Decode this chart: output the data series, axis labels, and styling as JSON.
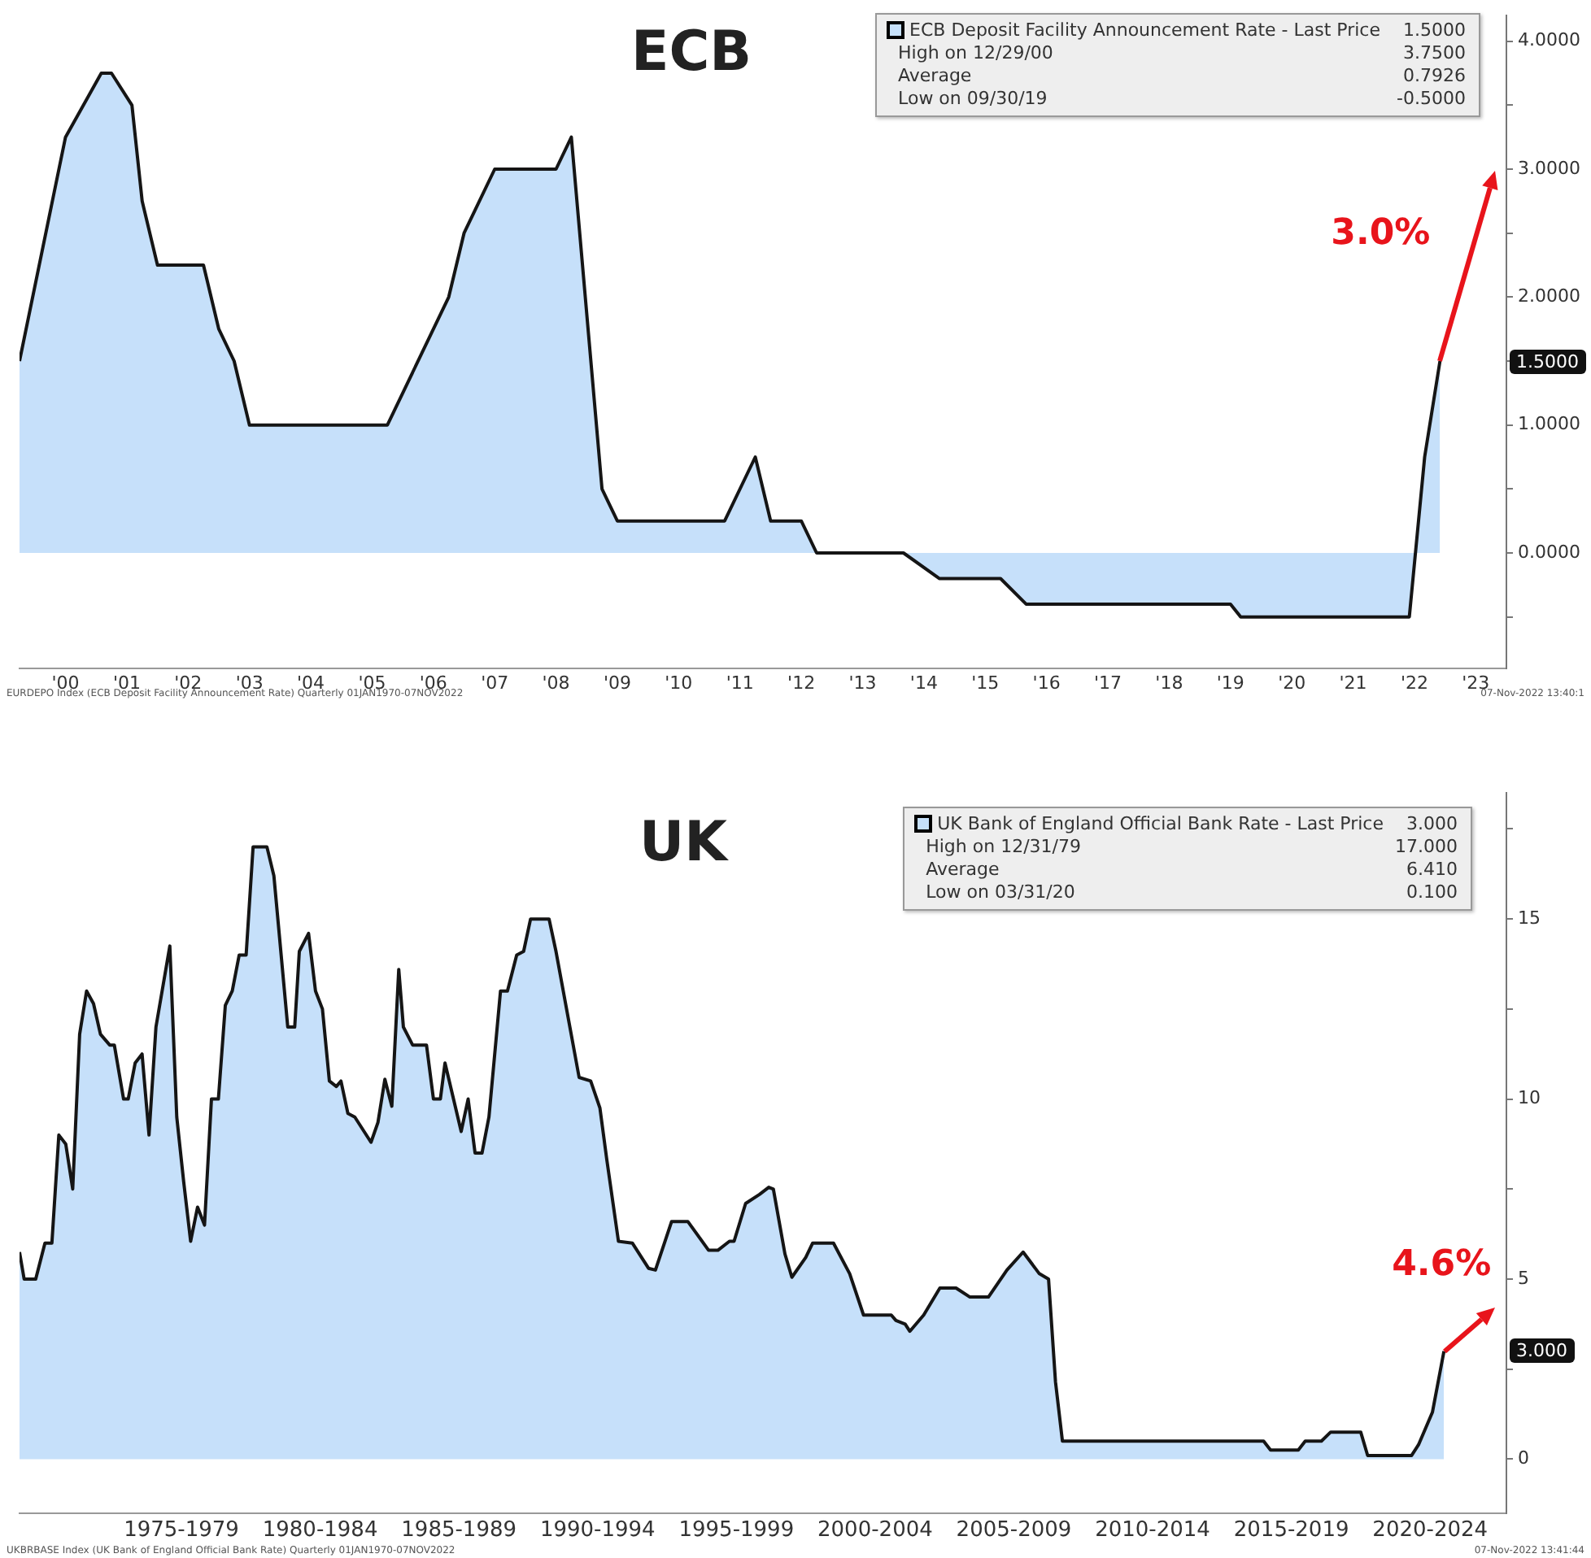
{
  "chart_data": [
    {
      "type": "area",
      "title": "ECB",
      "legend": "top right",
      "xlim": [
        "1999-10",
        "2024-01"
      ],
      "ylim": [
        -0.9,
        4.2
      ],
      "xticks": [
        {
          "value": "2000-07",
          "label": "'00"
        },
        {
          "value": "2001-07",
          "label": "'01"
        },
        {
          "value": "2002-07",
          "label": "'02"
        },
        {
          "value": "2003-07",
          "label": "'03"
        },
        {
          "value": "2004-07",
          "label": "'04"
        },
        {
          "value": "2005-07",
          "label": "'05"
        },
        {
          "value": "2006-07",
          "label": "'06"
        },
        {
          "value": "2007-07",
          "label": "'07"
        },
        {
          "value": "2008-07",
          "label": "'08"
        },
        {
          "value": "2009-07",
          "label": "'09"
        },
        {
          "value": "2010-07",
          "label": "'10"
        },
        {
          "value": "2011-07",
          "label": "'11"
        },
        {
          "value": "2012-07",
          "label": "'12"
        },
        {
          "value": "2013-07",
          "label": "'13"
        },
        {
          "value": "2014-07",
          "label": "'14"
        },
        {
          "value": "2015-07",
          "label": "'15"
        },
        {
          "value": "2016-07",
          "label": "'16"
        },
        {
          "value": "2017-07",
          "label": "'17"
        },
        {
          "value": "2018-07",
          "label": "'18"
        },
        {
          "value": "2019-07",
          "label": "'19"
        },
        {
          "value": "2020-07",
          "label": "'20"
        },
        {
          "value": "2021-07",
          "label": "'21"
        },
        {
          "value": "2022-07",
          "label": "'22"
        },
        {
          "value": "2023-07",
          "label": "'23"
        }
      ],
      "yticks": [
        {
          "value": -0.5,
          "label": null
        },
        {
          "value": 0,
          "label": "0.0000"
        },
        {
          "value": 0.5,
          "label": null
        },
        {
          "value": 1,
          "label": "1.0000"
        },
        {
          "value": 1.5,
          "label": null
        },
        {
          "value": 2,
          "label": "2.0000"
        },
        {
          "value": 2.5,
          "label": null
        },
        {
          "value": 3,
          "label": "3.0000"
        },
        {
          "value": 3.5,
          "label": null
        },
        {
          "value": 4,
          "label": "4.0000"
        }
      ],
      "series": [
        {
          "name": "ECB Deposit Facility Announcement Rate - Last Price",
          "color": "#c6e0fa",
          "x": [
            "1999-10",
            "2000-07",
            "2001-02",
            "2001-04",
            "2001-08",
            "2001-10",
            "2002-01",
            "2002-10",
            "2003-01",
            "2003-04",
            "2003-07",
            "2005-10",
            "2006-10",
            "2007-01",
            "2007-07",
            "2008-07",
            "2008-10",
            "2009-04",
            "2009-07",
            "2011-04",
            "2011-10",
            "2012-01",
            "2012-07",
            "2012-10",
            "2014-03",
            "2014-10",
            "2015-10",
            "2016-03",
            "2019-07",
            "2019-09",
            "2022-06",
            "2022-09",
            "2022-12"
          ],
          "values": [
            1.5,
            3.25,
            3.75,
            3.75,
            3.5,
            2.75,
            2.25,
            2.25,
            1.75,
            1.5,
            1.0,
            1.0,
            2.0,
            2.5,
            3.0,
            3.0,
            3.25,
            0.5,
            0.25,
            0.25,
            0.75,
            0.25,
            0.25,
            0,
            0,
            -0.2,
            -0.2,
            -0.4,
            -0.4,
            -0.5,
            -0.5,
            0.75,
            1.5
          ]
        }
      ],
      "annotations": [
        "1.5000",
        "High on 12/29/00",
        "3.7500",
        "Average",
        "0.7926",
        "Low on 09/30/19",
        "-0.5000",
        "EURDEPO Index (ECB Deposit Facility Announcement Rate) Quarterly 01JAN1970-07NOV2022",
        "07-Nov-2022 13:40:1",
        "1.5000",
        "3.0%"
      ]
    },
    {
      "type": "area",
      "title": "UK",
      "legend": "top right",
      "xlim": [
        "1971-09",
        "2025-04"
      ],
      "ylim": [
        -1.5,
        18.5
      ],
      "xticks": [
        {
          "value": "1977-07",
          "label": "1975-1979"
        },
        {
          "value": "1982-07",
          "label": "1980-1984"
        },
        {
          "value": "1987-07",
          "label": "1985-1989"
        },
        {
          "value": "1992-07",
          "label": "1990-1994"
        },
        {
          "value": "1997-07",
          "label": "1995-1999"
        },
        {
          "value": "2002-07",
          "label": "2000-2004"
        },
        {
          "value": "2007-07",
          "label": "2005-2009"
        },
        {
          "value": "2012-07",
          "label": "2010-2014"
        },
        {
          "value": "2017-07",
          "label": "2015-2019"
        },
        {
          "value": "2022-07",
          "label": "2020-2024"
        }
      ],
      "yticks": [
        0,
        {
          "value": 2.5,
          "label": null
        },
        5,
        {
          "value": 7.5,
          "label": null
        },
        10,
        {
          "value": 12.5,
          "label": null
        },
        15,
        {
          "value": 17.5,
          "label": null
        }
      ],
      "series": [
        {
          "name": "UK Bank of England Official Bank Rate - Last Price",
          "color": "#c6e0fa",
          "x": [
            "1971-09",
            "1971-11",
            "1972-04",
            "1972-08",
            "1972-11",
            "1973-02",
            "1973-05",
            "1973-08",
            "1973-11",
            "1974-02",
            "1974-05",
            "1974-08",
            "1974-12",
            "1975-02",
            "1975-06",
            "1975-08",
            "1975-11",
            "1976-02",
            "1976-05",
            "1976-08",
            "1977-02",
            "1977-05",
            "1977-08",
            "1977-11",
            "1978-02",
            "1978-05",
            "1978-08",
            "1978-11",
            "1979-02",
            "1979-05",
            "1979-08",
            "1979-11",
            "1980-02",
            "1980-08",
            "1980-11",
            "1981-05",
            "1981-08",
            "1981-10",
            "1982-02",
            "1982-05",
            "1982-08",
            "1982-11",
            "1983-02",
            "1983-04",
            "1983-07",
            "1983-10",
            "1984-05",
            "1984-08",
            "1984-11",
            "1985-02",
            "1985-05",
            "1985-07",
            "1985-11",
            "1986-05",
            "1986-08",
            "1986-11",
            "1987-01",
            "1987-08",
            "1987-11",
            "1988-02",
            "1988-05",
            "1988-08",
            "1989-01",
            "1989-04",
            "1989-08",
            "1989-11",
            "1990-02",
            "1990-10",
            "1991-01",
            "1991-11",
            "1992-04",
            "1992-08",
            "1992-11",
            "1993-04",
            "1993-10",
            "1994-05",
            "1994-08",
            "1995-03",
            "1995-10",
            "1996-07",
            "1996-11",
            "1997-04",
            "1997-06",
            "1997-11",
            "1998-05",
            "1998-09",
            "1998-11",
            "1999-04",
            "1999-07",
            "2000-01",
            "2000-04",
            "2001-01",
            "2001-08",
            "2002-02",
            "2003-02",
            "2003-04",
            "2003-08",
            "2003-10",
            "2004-04",
            "2004-11",
            "2005-06",
            "2005-12",
            "2006-08",
            "2007-04",
            "2007-11",
            "2008-06",
            "2008-10",
            "2009-01",
            "2009-04",
            "2016-07",
            "2016-10",
            "2017-10",
            "2018-01",
            "2018-08",
            "2018-12",
            "2020-01",
            "2020-04",
            "2021-11",
            "2022-02",
            "2022-08",
            "2023-01"
          ],
          "values": [
            5.75,
            5.0,
            5.0,
            6.0,
            6.0,
            9.0,
            8.75,
            7.5,
            11.8,
            13.0,
            12.65,
            11.8,
            11.5,
            11.5,
            10.0,
            10.0,
            11.0,
            11.25,
            9.0,
            12.0,
            14.25,
            9.5,
            7.7,
            6.05,
            7.0,
            6.5,
            10.0,
            10.0,
            12.6,
            13.0,
            14.0,
            14.0,
            17.0,
            17.0,
            16.2,
            12.0,
            12.0,
            14.1,
            14.6,
            13.0,
            12.5,
            10.5,
            10.35,
            10.5,
            9.6,
            9.5,
            8.8,
            9.35,
            10.55,
            9.8,
            13.6,
            12.0,
            11.5,
            11.5,
            10.0,
            10.0,
            11.0,
            9.1,
            10.0,
            8.5,
            8.5,
            9.5,
            13.0,
            13.0,
            14.0,
            14.1,
            15.0,
            15.0,
            14.1,
            10.6,
            10.5,
            9.75,
            8.3,
            6.05,
            6.0,
            5.3,
            5.25,
            6.6,
            6.6,
            5.8,
            5.8,
            6.05,
            6.05,
            7.1,
            7.35,
            7.55,
            7.5,
            5.7,
            5.05,
            5.6,
            6.0,
            6.0,
            5.15,
            4.0,
            4.0,
            3.85,
            3.75,
            3.55,
            4.0,
            4.75,
            4.75,
            4.5,
            4.5,
            5.25,
            5.75,
            5.15,
            5.0,
            2.15,
            0.5,
            0.5,
            0.25,
            0.25,
            0.5,
            0.5,
            0.75,
            0.75,
            0.1,
            0.1,
            0.4,
            1.3,
            3.0
          ]
        }
      ],
      "annotations": [
        "3.000",
        "High on 12/31/79",
        "17.000",
        "Average",
        "6.410",
        "Low on 03/31/20",
        "0.100",
        "UKBRBASE Index (UK Bank of England Official Bank Rate) Quarterly 01JAN1970-07NOV2022",
        "07-Nov-2022 13:41:44",
        "3.000",
        "4.6%"
      ]
    }
  ]
}
